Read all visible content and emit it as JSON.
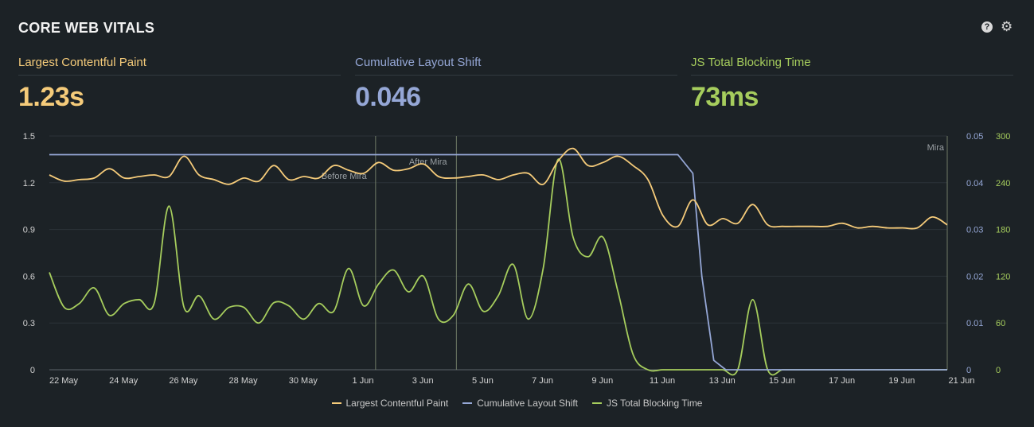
{
  "panel": {
    "title": "CORE WEB VITALS",
    "icons": [
      "help-icon",
      "gear-icon"
    ]
  },
  "metrics": [
    {
      "label": "Largest Contentful Paint",
      "value": "1.23s",
      "color": "#f5cb7a"
    },
    {
      "label": "Cumulative Layout Shift",
      "value": "0.046",
      "color": "#95a7d6"
    },
    {
      "label": "JS Total Blocking Time",
      "value": "73ms",
      "color": "#a6cd5d"
    }
  ],
  "chart_data": {
    "type": "line",
    "x_range": [
      "2025-05-22",
      "2025-06-21"
    ],
    "x_ticks": [
      "22 May",
      "24 May",
      "26 May",
      "28 May",
      "30 May",
      "1 Jun",
      "3 Jun",
      "5 Jun",
      "7 Jun",
      "9 Jun",
      "11 Jun",
      "13 Jun",
      "15 Jun",
      "17 Jun",
      "19 Jun",
      "21 Jun"
    ],
    "y_left": {
      "range": [
        0,
        1.5
      ],
      "ticks": [
        "0",
        "0.3",
        "0.6",
        "0.9",
        "1.2",
        "1.5"
      ]
    },
    "y_right_cls": {
      "range": [
        0,
        0.05
      ],
      "ticks": [
        "0",
        "0.01",
        "0.02",
        "0.03",
        "0.04",
        "0.05"
      ]
    },
    "y_right_tbt": {
      "range": [
        0,
        300
      ],
      "ticks": [
        "0",
        "60",
        "120",
        "180",
        "240",
        "300"
      ]
    },
    "grid": true,
    "legend_position": "bottom-center",
    "annotations": [
      {
        "x": 10.9,
        "label": "Before Mira"
      },
      {
        "x": 10.9,
        "label": "After Mira"
      },
      {
        "x": 13.6,
        "label": ""
      },
      {
        "x": 30.0,
        "label": "Mira"
      }
    ],
    "series": [
      {
        "name": "Largest Contentful Paint",
        "axis": "left",
        "color": "#f5cb7a",
        "x": [
          0,
          0.5,
          1,
          1.5,
          2,
          2.5,
          3,
          3.5,
          4,
          4.5,
          5,
          5.5,
          6,
          6.5,
          7,
          7.5,
          8,
          8.5,
          9,
          9.5,
          10,
          10.5,
          11,
          11.5,
          12,
          12.5,
          13,
          13.5,
          14,
          14.5,
          15,
          15.5,
          16,
          16.5,
          17,
          17.5,
          18,
          18.5,
          19,
          19.5,
          20,
          20.5,
          21,
          21.5,
          22,
          22.5,
          23,
          23.5,
          24,
          24.5,
          25,
          25.5,
          26,
          26.5,
          27,
          27.5,
          28,
          28.5,
          29,
          29.5,
          30
        ],
        "values": [
          1.25,
          1.21,
          1.22,
          1.23,
          1.29,
          1.23,
          1.24,
          1.25,
          1.24,
          1.37,
          1.25,
          1.22,
          1.19,
          1.23,
          1.21,
          1.31,
          1.22,
          1.24,
          1.23,
          1.31,
          1.28,
          1.26,
          1.33,
          1.28,
          1.29,
          1.32,
          1.24,
          1.23,
          1.24,
          1.25,
          1.22,
          1.25,
          1.26,
          1.19,
          1.34,
          1.42,
          1.31,
          1.33,
          1.37,
          1.31,
          1.22,
          0.99,
          0.92,
          1.09,
          0.93,
          0.97,
          0.94,
          1.06,
          0.93,
          0.92,
          0.92,
          0.92,
          0.92,
          0.94,
          0.91,
          0.92,
          0.91,
          0.91,
          0.91,
          0.98,
          0.93
        ]
      },
      {
        "name": "Cumulative Layout Shift",
        "axis": "right_cls",
        "color": "#95a7d6",
        "x": [
          0,
          20.5,
          21,
          21.5,
          21.8,
          22.2,
          22.6,
          30
        ],
        "values": [
          0.046,
          0.046,
          0.046,
          0.042,
          0.02,
          0.002,
          0,
          0
        ]
      },
      {
        "name": "JS Total Blocking Time",
        "axis": "right_tbt",
        "color": "#a6cd5d",
        "x": [
          0,
          0.5,
          1,
          1.5,
          2,
          2.5,
          3,
          3.5,
          4,
          4.5,
          5,
          5.5,
          6,
          6.5,
          7,
          7.5,
          8,
          8.5,
          9,
          9.5,
          10,
          10.5,
          11,
          11.5,
          12,
          12.5,
          13,
          13.5,
          14,
          14.5,
          15,
          15.5,
          16,
          16.5,
          17,
          17.5,
          18,
          18.5,
          19,
          19.5,
          20,
          20.5,
          21,
          21.5,
          22,
          22.5,
          23,
          23.5,
          24,
          24.5,
          25,
          25.5,
          26,
          26.5,
          27,
          27.5,
          28,
          28.5,
          29,
          29.5,
          30
        ],
        "values": [
          125,
          80,
          85,
          105,
          70,
          85,
          90,
          85,
          210,
          80,
          95,
          65,
          80,
          80,
          60,
          86,
          82,
          65,
          85,
          75,
          130,
          82,
          110,
          128,
          100,
          120,
          65,
          70,
          110,
          75,
          95,
          135,
          65,
          130,
          270,
          170,
          145,
          170,
          100,
          20,
          0,
          0,
          0,
          0,
          0,
          0,
          0,
          90,
          0,
          0,
          0,
          0,
          0,
          0,
          0,
          0,
          0,
          0,
          0,
          0,
          0
        ]
      }
    ]
  }
}
